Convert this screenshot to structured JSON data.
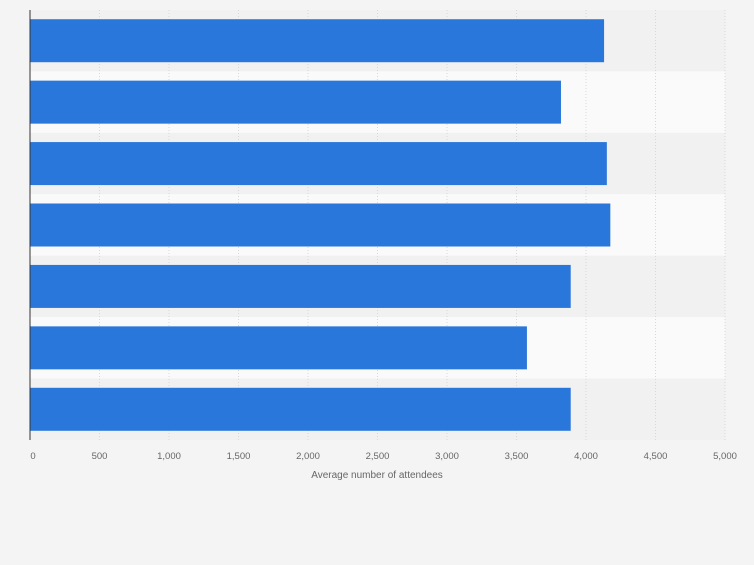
{
  "chart_data": {
    "type": "bar",
    "orientation": "horizontal",
    "categories": [
      "",
      "",
      "",
      "",
      "",
      "",
      ""
    ],
    "values": [
      4130,
      3820,
      4150,
      4175,
      3890,
      3575,
      3890
    ],
    "title": "",
    "xlabel": "Average number of attendees",
    "ylabel": "",
    "xlim": [
      0,
      5000
    ],
    "x_ticks": [
      0,
      500,
      1000,
      1500,
      2000,
      2500,
      3000,
      3500,
      4000,
      4500,
      5000
    ],
    "x_tick_labels": [
      "0",
      "500",
      "1,000",
      "1,500",
      "2,000",
      "2,500",
      "3,000",
      "3,500",
      "4,000",
      "4,500",
      "5,000"
    ],
    "grid": true,
    "bar_color": "#2a77dc",
    "band_colors": [
      "#f1f1f1",
      "#fafafa"
    ],
    "background_color": "#f4f4f4"
  }
}
